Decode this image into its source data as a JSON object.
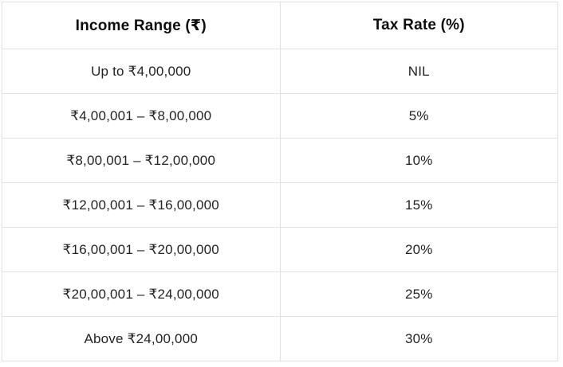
{
  "chart_data": {
    "type": "table",
    "columns": [
      "Income Range (₹)",
      "Tax Rate (%)"
    ],
    "rows": [
      [
        "Up to ₹4,00,000",
        "NIL"
      ],
      [
        "₹4,00,001 – ₹8,00,000",
        "5%"
      ],
      [
        "₹8,00,001 – ₹12,00,000",
        "10%"
      ],
      [
        "₹12,00,001 – ₹16,00,000",
        "15%"
      ],
      [
        "₹16,00,001 – ₹20,00,000",
        "20%"
      ],
      [
        "₹20,00,001 – ₹24,00,000",
        "25%"
      ],
      [
        "Above ₹24,00,000",
        "30%"
      ]
    ],
    "layout": {
      "column_alignment": "center",
      "grid": "all-borders"
    },
    "colors": {
      "border": "#e2e2e2",
      "header_text": "#0d0d0d",
      "body_text": "#232323",
      "background": "#ffffff"
    }
  }
}
